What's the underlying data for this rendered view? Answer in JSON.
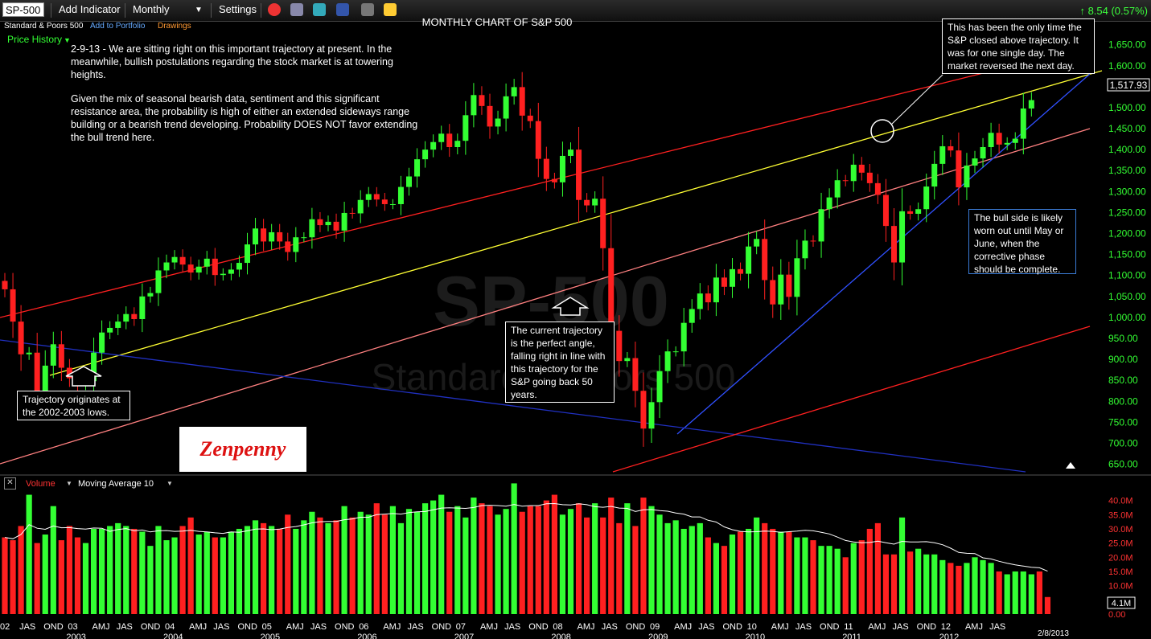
{
  "toolbar": {
    "symbol": "SP-500",
    "add_indicator": "Add Indicator",
    "period": "Monthly",
    "settings": "Settings",
    "change": "↑ 8.54 (0.57%)",
    "icons": [
      "clock-icon",
      "print-icon",
      "twitter-icon",
      "facebook-icon",
      "link-icon",
      "note-icon"
    ]
  },
  "subbar": {
    "name": "Standard & Poors 500",
    "add_portfolio": "Add to Portfolio",
    "drawings": "Drawings",
    "price_history": "Price History"
  },
  "chart_title": "MONTHLY CHART OF S&P 500",
  "watermark": {
    "ticker": "SP-500",
    "name": "Standard & Poors 500"
  },
  "annotations": {
    "main_p1": "2-9-13 - We are sitting right on this important trajectory at present. In the meanwhile, bullish postulations regarding the stock market is at towering heights.",
    "main_p2": "Given the mix of seasonal bearish data, sentiment and this significant resistance area, the probability is high of either an extended sideways range building or a bearish trend developing. Probability DOES NOT favor extending the bull trend here.",
    "top_right": "This has been the only time the S&P closed above trajectory. It was for one single day. The market reversed the next day.",
    "bull_side": "The bull side is likely worn out until May or June, when the corrective phase should be complete.",
    "current_trajectory": "The current trajectory is the perfect angle, falling right in line with this trajectory for the S&P going back 50 years.",
    "origin": "Trajectory originates at the 2002-2003 lows."
  },
  "logo_text": "Zenpenny",
  "volume_header": {
    "label": "Volume",
    "ma": "Moving Average 10"
  },
  "date_label": "2/8/2013",
  "last_price": "1,517.93",
  "last_volume": "4.1M",
  "colors": {
    "up": "#33ff33",
    "down": "#ff2020",
    "bg": "#000000"
  },
  "chart_data": {
    "type": "candlestick",
    "title": "MONTHLY CHART OF S&P 500",
    "price_ticks": [
      "650.00",
      "700.00",
      "750.00",
      "800.00",
      "850.00",
      "900.00",
      "950.00",
      "1,000.00",
      "1,050.00",
      "1,100.00",
      "1,150.00",
      "1,200.00",
      "1,250.00",
      "1,300.00",
      "1,350.00",
      "1,400.00",
      "1,450.00",
      "1,500.00",
      "1,550.00",
      "1,600.00",
      "1,650.00"
    ],
    "price_tick_values": [
      650,
      700,
      750,
      800,
      850,
      900,
      950,
      1000,
      1050,
      1100,
      1150,
      1200,
      1250,
      1300,
      1350,
      1400,
      1450,
      1500,
      1550,
      1600,
      1650
    ],
    "y_range": [
      630,
      1680
    ],
    "volume_ticks": [
      "0.00",
      "10.0M",
      "15.0M",
      "20.0M",
      "25.0M",
      "30.0M",
      "35.0M",
      "40.0M"
    ],
    "volume_tick_values": [
      0,
      10,
      15,
      20,
      25,
      30,
      35,
      40
    ],
    "volume_range_m": [
      0,
      43
    ],
    "x_labels": [
      "02",
      "JAS",
      "OND",
      "03",
      "AMJ",
      "JAS",
      "OND",
      "04",
      "AMJ",
      "JAS",
      "OND",
      "05",
      "AMJ",
      "JAS",
      "OND",
      "06",
      "AMJ",
      "JAS",
      "OND",
      "07",
      "AMJ",
      "JAS",
      "OND",
      "08",
      "AMJ",
      "JAS",
      "OND",
      "09",
      "AMJ",
      "JAS",
      "OND",
      "10",
      "AMJ",
      "JAS",
      "OND",
      "11",
      "AMJ",
      "JAS",
      "OND",
      "12",
      "AMJ",
      "JAS"
    ],
    "year_labels": [
      "2003",
      "2004",
      "2005",
      "2006",
      "2007",
      "2008",
      "2009",
      "2010",
      "2011",
      "2012"
    ],
    "start_month": "2002-05",
    "closes": [
      1067,
      990,
      912,
      916,
      815,
      885,
      936,
      880,
      855,
      841,
      848,
      916,
      964,
      975,
      990,
      1008,
      996,
      1050,
      1058,
      1112,
      1131,
      1144,
      1126,
      1107,
      1121,
      1140,
      1101,
      1104,
      1114,
      1130,
      1174,
      1212,
      1181,
      1203,
      1181,
      1156,
      1191,
      1191,
      1234,
      1220,
      1228,
      1207,
      1249,
      1248,
      1280,
      1294,
      1281,
      1270,
      1270,
      1311,
      1336,
      1377,
      1400,
      1418,
      1438,
      1406,
      1421,
      1482,
      1530,
      1504,
      1455,
      1474,
      1527,
      1549,
      1481,
      1468,
      1378,
      1330,
      1322,
      1385,
      1400,
      1280,
      1267,
      1283,
      1165,
      968,
      896,
      903,
      825,
      735,
      798,
      872,
      919,
      919,
      987,
      1020,
      1057,
      1036,
      1095,
      1073,
      1115,
      1104,
      1169,
      1187,
      1089,
      1031,
      1102,
      1049,
      1141,
      1183,
      1181,
      1258,
      1286,
      1327,
      1325,
      1364,
      1345,
      1320,
      1292,
      1218,
      1131,
      1253,
      1247,
      1258,
      1312,
      1366,
      1408,
      1398,
      1310,
      1362,
      1379,
      1406,
      1440,
      1412,
      1416,
      1426,
      1498,
      1518
    ],
    "volume_m": [
      27,
      26,
      31,
      42,
      25,
      28,
      38,
      26,
      31,
      27,
      25,
      30,
      30,
      31,
      32,
      31,
      30,
      29,
      24,
      31,
      26,
      27,
      31,
      34,
      28,
      29,
      27,
      27,
      29,
      30,
      31,
      33,
      32,
      31,
      30,
      35,
      30,
      33,
      36,
      34,
      32,
      33,
      38,
      34,
      36,
      35,
      39,
      35,
      38,
      32,
      37,
      36,
      39,
      40,
      42,
      36,
      38,
      34,
      41,
      39,
      38,
      35,
      37,
      46,
      36,
      38,
      38,
      40,
      42,
      35,
      37,
      39,
      34,
      39,
      34,
      41,
      32,
      39,
      31,
      41,
      38,
      35,
      32,
      33,
      30,
      31,
      32,
      27,
      25,
      24,
      28,
      29,
      30,
      34,
      32,
      30,
      29,
      29,
      27,
      27,
      26,
      24,
      24,
      23,
      20,
      25,
      26,
      30,
      32,
      21,
      21,
      34,
      22,
      23,
      21,
      21,
      19,
      18,
      17,
      18,
      20,
      19,
      18,
      15,
      14,
      15,
      15,
      14,
      15,
      6
    ]
  },
  "trend_lines": [
    {
      "name": "red upper channel",
      "color": "#ff2020"
    },
    {
      "name": "yellow trajectory",
      "color": "#ffff33"
    },
    {
      "name": "pink lower channel",
      "color": "#ff8080"
    },
    {
      "name": "blue support",
      "color": "#3050ff"
    },
    {
      "name": "blue lower",
      "color": "#2030c0"
    },
    {
      "name": "red lower",
      "color": "#ff2020"
    }
  ]
}
